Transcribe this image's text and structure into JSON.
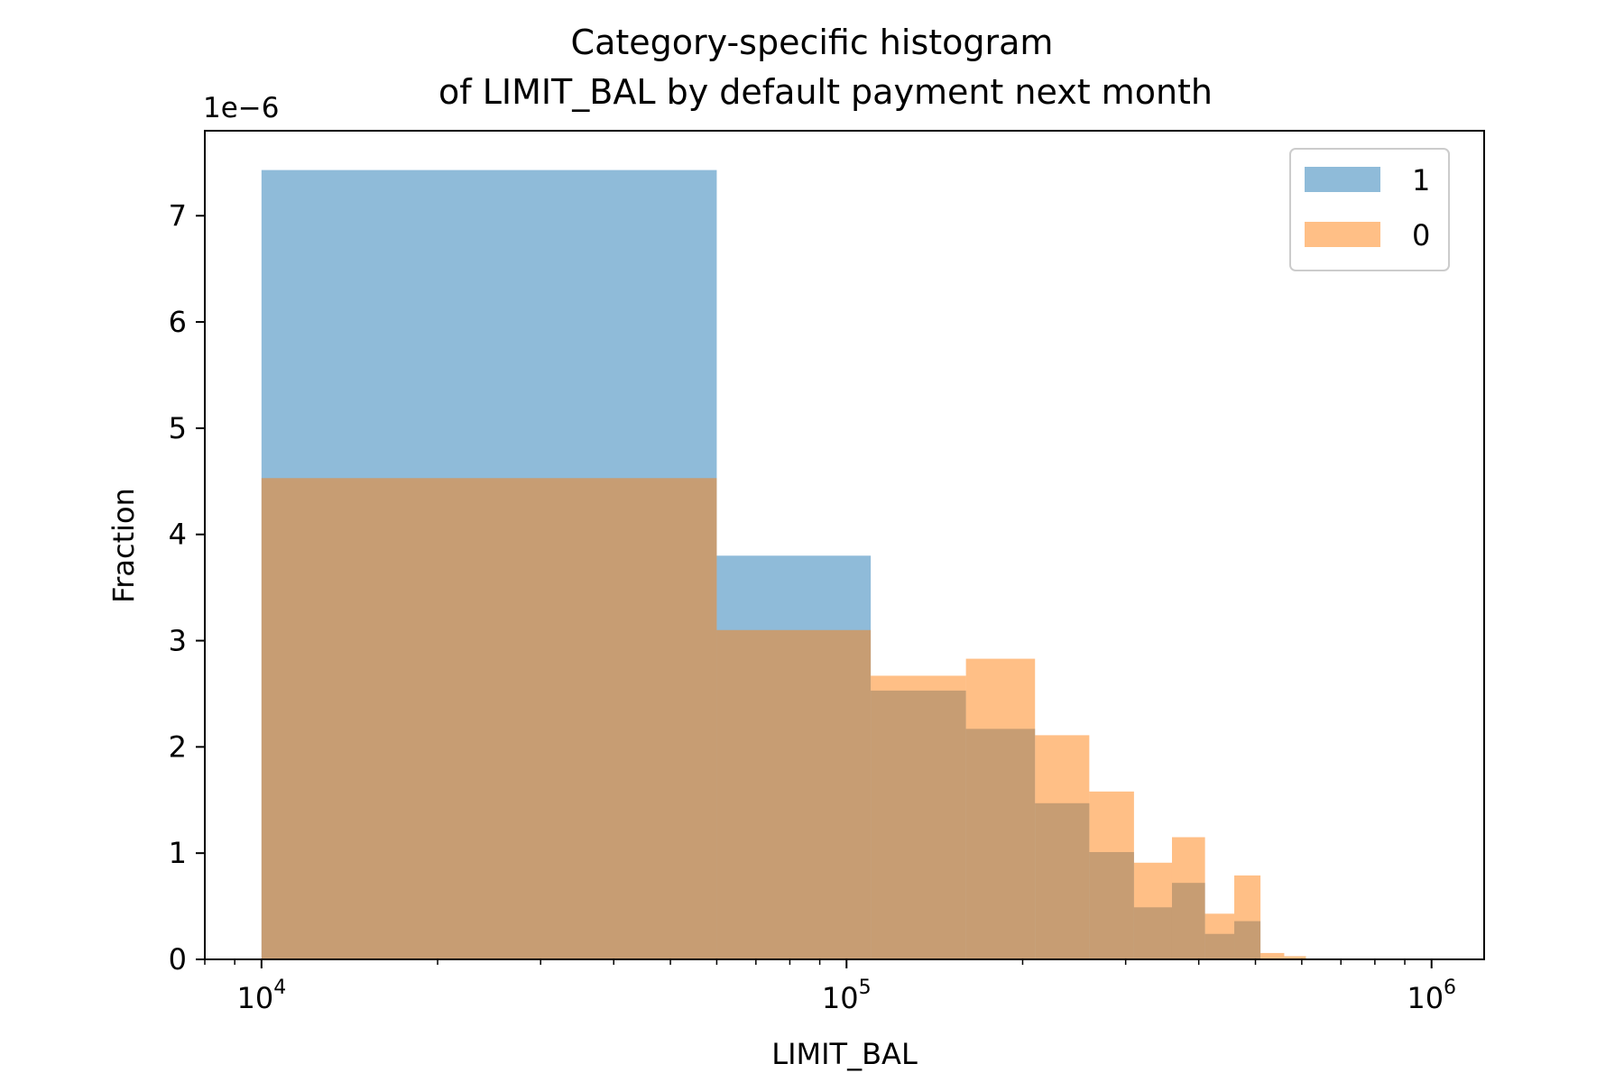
{
  "chart_data": {
    "type": "bar",
    "title_line1": "Category-specific histogram",
    "title_line2": "of LIMIT_BAL by default payment next month",
    "xlabel": "LIMIT_BAL",
    "ylabel": "Fraction",
    "y_offset_label": "1e−6",
    "x_scale": "log",
    "xlim": [
      8000,
      1230000
    ],
    "ylim": [
      0,
      7.8e-06
    ],
    "grid": false,
    "legend_position": "top-right",
    "x_ticks": [
      {
        "value": 10000,
        "base": "10",
        "exp": "4"
      },
      {
        "value": 100000,
        "base": "10",
        "exp": "5"
      },
      {
        "value": 1000000,
        "base": "10",
        "exp": "6"
      }
    ],
    "y_ticks": [
      {
        "value": 0,
        "label": "0"
      },
      {
        "value": 1e-06,
        "label": "1"
      },
      {
        "value": 2e-06,
        "label": "2"
      },
      {
        "value": 3e-06,
        "label": "3"
      },
      {
        "value": 4e-06,
        "label": "4"
      },
      {
        "value": 5e-06,
        "label": "5"
      },
      {
        "value": 6e-06,
        "label": "6"
      },
      {
        "value": 7e-06,
        "label": "7"
      }
    ],
    "series": [
      {
        "name": "1",
        "color": "#1f77b4",
        "opacity": 0.5,
        "bins": [
          {
            "x0": 10000,
            "x1": 60000,
            "value": 7.43e-06
          },
          {
            "x0": 60000,
            "x1": 110000,
            "value": 3.8e-06
          },
          {
            "x0": 110000,
            "x1": 160000,
            "value": 2.53e-06
          },
          {
            "x0": 160000,
            "x1": 210000,
            "value": 2.17e-06
          },
          {
            "x0": 210000,
            "x1": 260000,
            "value": 1.47e-06
          },
          {
            "x0": 260000,
            "x1": 310000,
            "value": 1.01e-06
          },
          {
            "x0": 310000,
            "x1": 360000,
            "value": 4.9e-07
          },
          {
            "x0": 360000,
            "x1": 410000,
            "value": 7.2e-07
          },
          {
            "x0": 410000,
            "x1": 460000,
            "value": 2.4e-07
          },
          {
            "x0": 460000,
            "x1": 510000,
            "value": 3.6e-07
          }
        ]
      },
      {
        "name": "0",
        "color": "#ff7f0e",
        "opacity": 0.5,
        "bins": [
          {
            "x0": 10000,
            "x1": 60000,
            "value": 4.53e-06
          },
          {
            "x0": 60000,
            "x1": 110000,
            "value": 3.1e-06
          },
          {
            "x0": 110000,
            "x1": 160000,
            "value": 2.67e-06
          },
          {
            "x0": 160000,
            "x1": 210000,
            "value": 2.83e-06
          },
          {
            "x0": 210000,
            "x1": 260000,
            "value": 2.11e-06
          },
          {
            "x0": 260000,
            "x1": 310000,
            "value": 1.58e-06
          },
          {
            "x0": 310000,
            "x1": 360000,
            "value": 9.1e-07
          },
          {
            "x0": 360000,
            "x1": 410000,
            "value": 1.15e-06
          },
          {
            "x0": 410000,
            "x1": 460000,
            "value": 4.3e-07
          },
          {
            "x0": 460000,
            "x1": 510000,
            "value": 7.9e-07
          },
          {
            "x0": 510000,
            "x1": 560000,
            "value": 6e-08
          },
          {
            "x0": 560000,
            "x1": 610000,
            "value": 3e-08
          }
        ]
      }
    ]
  }
}
